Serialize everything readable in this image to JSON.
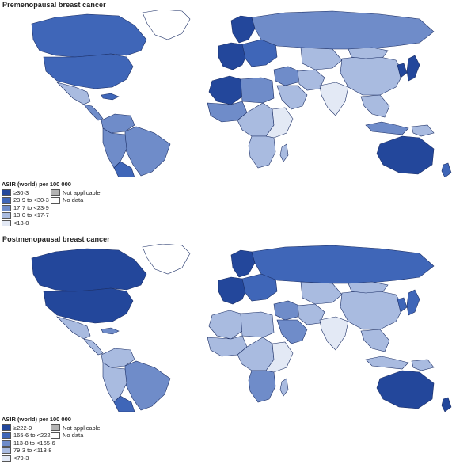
{
  "colors": {
    "ocean": "#ffffff",
    "border": "#1c2f66",
    "not_applicable": "#b4b4b4",
    "no_data": "#ffffff"
  },
  "panels": [
    {
      "title": "Premenopausal breast cancer",
      "legend": {
        "title": "ASIR (world) per 100 000",
        "classes": [
          {
            "label": "≥30·3",
            "color": "#23479b"
          },
          {
            "label": "23·9 to <30·3",
            "color": "#3f66b8"
          },
          {
            "label": "17·7 to <23·9",
            "color": "#6f8cc9"
          },
          {
            "label": "13·0 to <17·7",
            "color": "#a9bbe0"
          },
          {
            "label": "<13·0",
            "color": "#e3e9f5"
          }
        ],
        "extra": [
          {
            "label": "Not applicable",
            "color": "#b4b4b4"
          },
          {
            "label": "No data",
            "color": "#ffffff"
          }
        ]
      },
      "regions": {
        "canada": 1,
        "greenland": 5,
        "usa": 1,
        "mexico": 3,
        "central_america": 2,
        "caribbean": 1,
        "colombia_venezuela": 2,
        "brazil": 2,
        "andes": 2,
        "southern_cone": 1,
        "scandinavia": 0,
        "western_europe": 0,
        "eastern_europe": 1,
        "russia": 2,
        "north_africa_west": 0,
        "north_africa_east": 2,
        "west_africa": 2,
        "central_africa": 3,
        "east_africa": 4,
        "southern_africa": 3,
        "madagascar": 3,
        "middle_east": 2,
        "iran": 3,
        "arabia": 3,
        "central_asia": 3,
        "south_asia": 4,
        "china": 3,
        "mongolia": 3,
        "japan": 0,
        "korea": 0,
        "southeast_asia": 3,
        "indonesia": 2,
        "papua": 3,
        "australia": 0,
        "new_zealand": 1
      }
    },
    {
      "title": "Postmenopausal breast cancer",
      "legend": {
        "title": "ASIR (world) per 100 000",
        "classes": [
          {
            "label": "≥222·9",
            "color": "#23479b"
          },
          {
            "label": "165·6 to <222·9",
            "color": "#3f66b8"
          },
          {
            "label": "113·8 to <165·6",
            "color": "#6f8cc9"
          },
          {
            "label": "79·3 to <113·8",
            "color": "#a9bbe0"
          },
          {
            "label": "<79·3",
            "color": "#e3e9f5"
          }
        ],
        "extra": [
          {
            "label": "Not applicable",
            "color": "#b4b4b4"
          },
          {
            "label": "No data",
            "color": "#ffffff"
          }
        ]
      },
      "regions": {
        "canada": 0,
        "greenland": 5,
        "usa": 0,
        "mexico": 3,
        "central_america": 3,
        "caribbean": 2,
        "colombia_venezuela": 3,
        "brazil": 2,
        "andes": 3,
        "southern_cone": 1,
        "scandinavia": 0,
        "western_europe": 0,
        "eastern_europe": 1,
        "russia": 1,
        "north_africa_west": 3,
        "north_africa_east": 3,
        "west_africa": 3,
        "central_africa": 3,
        "east_africa": 4,
        "southern_africa": 2,
        "madagascar": 3,
        "middle_east": 2,
        "iran": 3,
        "arabia": 2,
        "central_asia": 3,
        "south_asia": 4,
        "china": 3,
        "mongolia": 3,
        "japan": 1,
        "korea": 1,
        "southeast_asia": 3,
        "indonesia": 3,
        "papua": 3,
        "australia": 0,
        "new_zealand": 0
      }
    }
  ]
}
